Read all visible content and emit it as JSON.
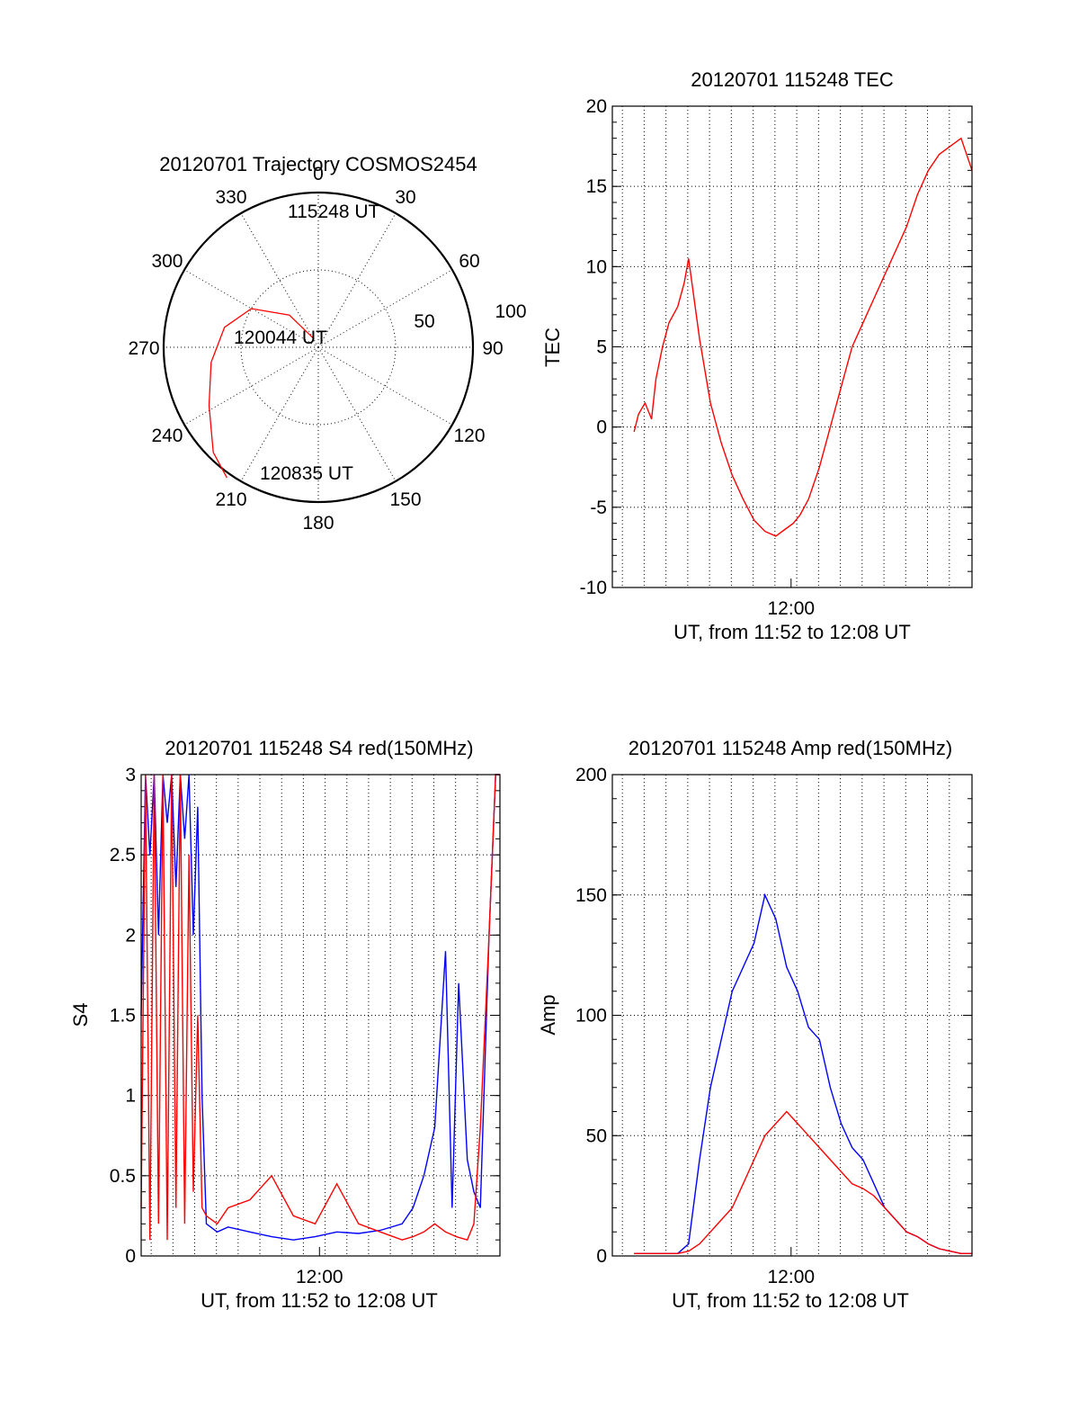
{
  "colors": {
    "red": "#ff0000",
    "blue": "#0000ff",
    "axis": "#000000",
    "background": "#ffffff"
  },
  "chart_data": [
    {
      "id": "polar",
      "type": "polar",
      "title": "20120701 Trajectory COSMOS2454",
      "azimuth_ticks": [
        "0",
        "30",
        "60",
        "90",
        "120",
        "150",
        "180",
        "210",
        "240",
        "270",
        "300",
        "330"
      ],
      "azimuth_values": [
        0,
        30,
        60,
        90,
        120,
        150,
        180,
        210,
        240,
        270,
        300,
        330
      ],
      "elevation_ticks": [
        "100",
        "50"
      ],
      "rings": "dotted",
      "trajectory": {
        "color": "#ff0000",
        "points": [
          [
            333,
            6
          ],
          [
            318,
            28
          ],
          [
            300,
            50
          ],
          [
            282,
            62
          ],
          [
            262,
            70
          ],
          [
            242,
            80
          ],
          [
            225,
            96
          ],
          [
            215,
            103
          ]
        ]
      },
      "annotations": [
        "115248 UT",
        "120044 UT",
        "120835 UT"
      ]
    },
    {
      "id": "tec",
      "type": "line",
      "title": "20120701 115248 TEC",
      "xlabel": "UT, from 11:52 to 12:08 UT",
      "ylabel": "TEC",
      "xtick_label": "12:00",
      "xlim": [
        0,
        16.5
      ],
      "ylim": [
        -10,
        20
      ],
      "yticks": [
        "-10",
        "-5",
        "0",
        "5",
        "10",
        "15",
        "20"
      ],
      "grid": true,
      "series": [
        {
          "color": "#ff0000",
          "x": [
            1,
            1.2,
            1.5,
            1.8,
            2.0,
            2.3,
            2.6,
            3.0,
            3.3,
            3.5,
            3.7,
            4.0,
            4.5,
            5.0,
            5.5,
            6.0,
            6.5,
            7.0,
            7.5,
            8.0,
            8.3,
            8.6,
            9.0,
            9.5,
            10.0,
            10.5,
            11.0,
            11.5,
            12.0,
            12.5,
            13.0,
            13.5,
            14.0,
            14.5,
            15.0,
            15.5,
            16.0,
            16.5
          ],
          "y": [
            -0.3,
            0.8,
            1.5,
            0.5,
            3.0,
            5.0,
            6.5,
            7.5,
            9.0,
            10.5,
            8.5,
            5.5,
            1.5,
            -1.0,
            -3.0,
            -4.5,
            -5.8,
            -6.5,
            -6.8,
            -6.3,
            -6.0,
            -5.5,
            -4.5,
            -2.5,
            0.0,
            2.5,
            5.0,
            6.5,
            8.0,
            9.5,
            11.0,
            12.5,
            14.5,
            16.0,
            17.0,
            17.5,
            18.0,
            16.0
          ]
        }
      ]
    },
    {
      "id": "s4",
      "type": "line",
      "title": "20120701 115248 S4 red(150MHz)",
      "xlabel": "UT, from 11:52 to 12:08 UT",
      "ylabel": "S4",
      "xtick_label": "12:00",
      "xlim": [
        0,
        16.5
      ],
      "ylim": [
        0,
        3
      ],
      "yticks": [
        "0",
        "0.5",
        "1",
        "1.5",
        "2",
        "2.5",
        "3"
      ],
      "grid": true,
      "series": [
        {
          "color": "#0000ff",
          "x": [
            0,
            0.2,
            0.4,
            0.6,
            0.8,
            1.0,
            1.2,
            1.4,
            1.6,
            1.8,
            2.0,
            2.2,
            2.4,
            2.6,
            2.8,
            3.0,
            3.5,
            4.0,
            5.0,
            6.0,
            7.0,
            8.0,
            9.0,
            10.0,
            11.0,
            12.0,
            12.5,
            13.0,
            13.5,
            14.0,
            14.3,
            14.6,
            15.0,
            15.3,
            15.6,
            16.0,
            16.3,
            16.5
          ],
          "y": [
            1.5,
            3.0,
            2.5,
            3.0,
            2.0,
            3.0,
            2.7,
            3.0,
            2.3,
            3.0,
            2.6,
            3.0,
            2.0,
            2.8,
            1.0,
            0.2,
            0.15,
            0.18,
            0.15,
            0.12,
            0.1,
            0.12,
            0.15,
            0.14,
            0.16,
            0.2,
            0.3,
            0.5,
            0.8,
            1.9,
            0.3,
            1.7,
            0.6,
            0.4,
            0.3,
            2.0,
            3.0,
            3.0
          ]
        },
        {
          "color": "#ff0000",
          "x": [
            0,
            0.2,
            0.4,
            0.6,
            0.8,
            1.0,
            1.2,
            1.4,
            1.6,
            1.8,
            2.0,
            2.2,
            2.4,
            2.6,
            2.8,
            3.0,
            3.5,
            4.0,
            5.0,
            6.0,
            7.0,
            8.0,
            9.0,
            10.0,
            11.0,
            12.0,
            12.5,
            13.0,
            13.5,
            14.0,
            14.5,
            15.0,
            15.3,
            15.6,
            16.0,
            16.3,
            16.5
          ],
          "y": [
            0.3,
            3.0,
            0.1,
            3.0,
            0.2,
            3.0,
            0.1,
            3.0,
            0.3,
            3.0,
            0.2,
            2.5,
            0.4,
            1.5,
            0.3,
            0.25,
            0.2,
            0.3,
            0.35,
            0.5,
            0.25,
            0.2,
            0.45,
            0.2,
            0.15,
            0.1,
            0.12,
            0.15,
            0.2,
            0.15,
            0.12,
            0.1,
            0.2,
            0.8,
            2.0,
            3.0,
            3.0
          ]
        }
      ]
    },
    {
      "id": "amp",
      "type": "line",
      "title": "20120701 115248 Amp red(150MHz)",
      "xlabel": "UT, from 11:52 to 12:08 UT",
      "ylabel": "Amp",
      "xtick_label": "12:00",
      "xlim": [
        0,
        16.5
      ],
      "ylim": [
        0,
        200
      ],
      "yticks": [
        "0",
        "50",
        "100",
        "150",
        "200"
      ],
      "grid": true,
      "series": [
        {
          "color": "#0000ff",
          "x": [
            1,
            2,
            3,
            3.5,
            4,
            4.5,
            5,
            5.5,
            6,
            6.5,
            7,
            7.5,
            8,
            8.5,
            9,
            9.5,
            10,
            10.5,
            11,
            11.5,
            12,
            12.5,
            13,
            13.5,
            14,
            14.5,
            15,
            15.5,
            16,
            16.5
          ],
          "y": [
            1,
            1,
            1,
            5,
            40,
            70,
            90,
            110,
            120,
            130,
            150,
            140,
            120,
            110,
            95,
            90,
            70,
            55,
            45,
            40,
            30,
            20,
            15,
            10,
            8,
            5,
            3,
            2,
            1,
            1
          ]
        },
        {
          "color": "#ff0000",
          "x": [
            1,
            2,
            3,
            3.5,
            4,
            4.5,
            5,
            5.5,
            6,
            6.5,
            7,
            7.5,
            8,
            8.5,
            9,
            9.5,
            10,
            10.5,
            11,
            11.5,
            12,
            12.5,
            13,
            13.5,
            14,
            14.5,
            15,
            15.5,
            16,
            16.5
          ],
          "y": [
            1,
            1,
            1,
            2,
            5,
            10,
            15,
            20,
            30,
            40,
            50,
            55,
            60,
            55,
            50,
            45,
            40,
            35,
            30,
            28,
            25,
            20,
            15,
            10,
            8,
            5,
            3,
            2,
            1,
            1
          ]
        }
      ]
    }
  ]
}
